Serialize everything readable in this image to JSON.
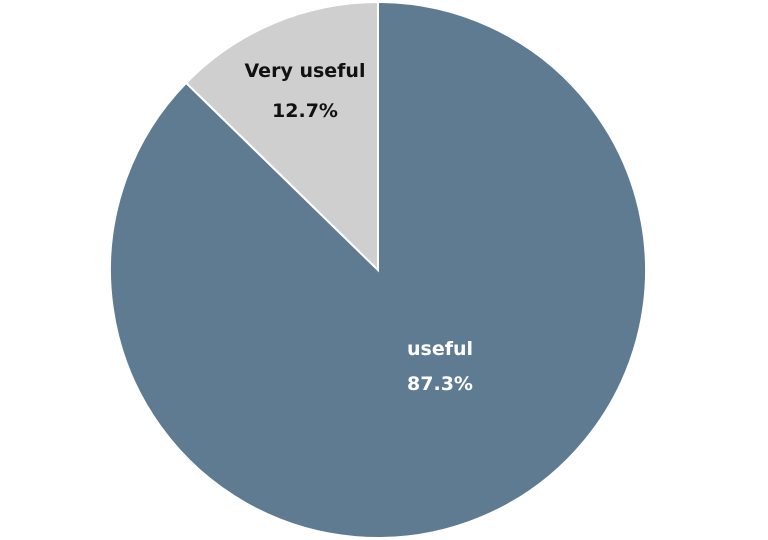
{
  "chart_data": {
    "type": "pie",
    "start_angle_deg": 0,
    "direction": "clockwise",
    "slices": [
      {
        "label": "useful",
        "value": 87.3,
        "value_label": "87.3%",
        "color": "#5e7b92",
        "label_color": "#ffffff"
      },
      {
        "label": "Very useful",
        "value": 12.7,
        "value_label": "12.7%",
        "color": "#d0cfd0",
        "label_color": "#111111"
      }
    ],
    "legend": "none"
  }
}
